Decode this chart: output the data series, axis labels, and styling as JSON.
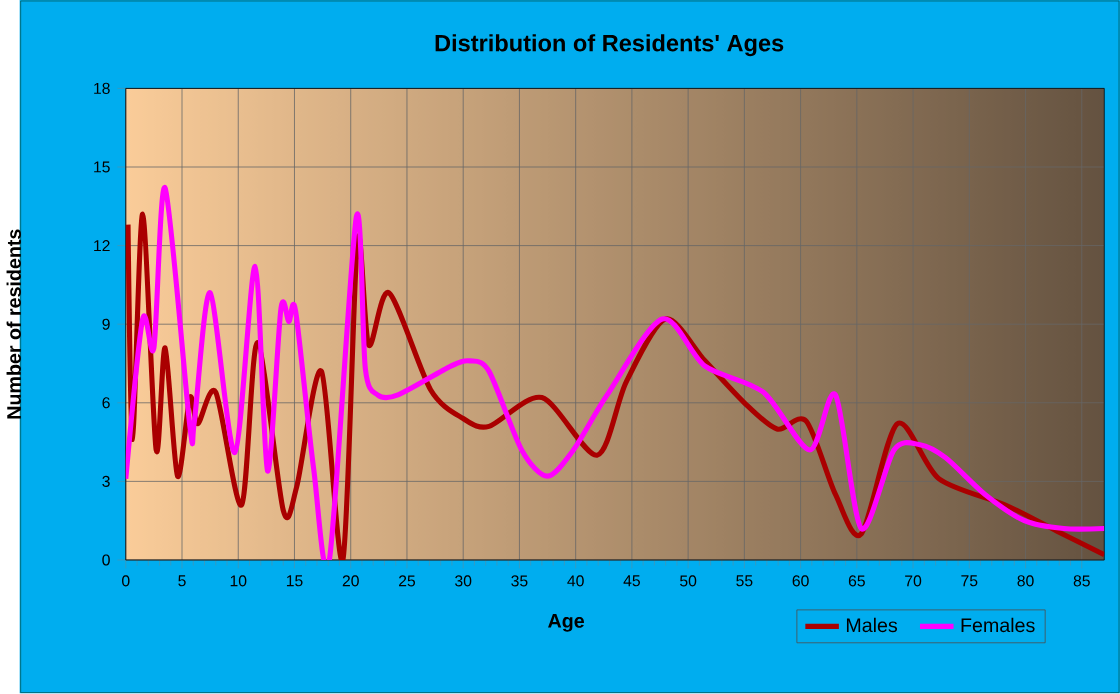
{
  "chart_data": {
    "type": "line",
    "title": "Distribution of Residents' Ages",
    "xlabel": "Age",
    "ylabel": "Number of residents",
    "series": [
      {
        "name": "Males",
        "color": "#aa0000",
        "x": [
          0.2,
          0.6,
          1.5,
          2.7,
          3.5,
          4.6,
          5.7,
          6.4,
          8.0,
          10.3,
          11.7,
          14.0,
          15.2,
          17.4,
          19.3,
          20.6,
          21.6,
          23.4,
          27.1,
          30,
          32.3,
          37.0,
          41.9,
          44.5,
          48.0,
          51.5,
          55.0,
          57.9,
          60.5,
          63.1,
          65.4,
          68.6,
          72.3,
          78.2,
          82.8,
          87
        ],
        "values": [
          12.8,
          4.6,
          13.2,
          4.2,
          8.1,
          3.2,
          6.2,
          5.2,
          6.4,
          2.1,
          8.3,
          1.9,
          2.8,
          7.2,
          0,
          12.2,
          8.2,
          10.2,
          6.5,
          5.4,
          5.1,
          6.2,
          4.0,
          6.8,
          9.2,
          7.6,
          6.0,
          5.0,
          5.3,
          2.5,
          1.0,
          5.2,
          3.1,
          2.1,
          1.1,
          0.2
        ]
      },
      {
        "name": "Females",
        "color": "#ff00ff",
        "x": [
          0,
          1.5,
          2.5,
          3.5,
          5.7,
          6.1,
          7.5,
          9.7,
          11.5,
          12.6,
          13.8,
          14.5,
          15.1,
          16.7,
          18.1,
          20.5,
          21.3,
          22.4,
          24.2,
          28.9,
          30.6,
          32.3,
          35.2,
          37.5,
          39.8,
          42.8,
          47.7,
          51.5,
          56.7,
          60.8,
          63.1,
          65.4,
          68.3,
          70.6,
          72.9,
          76.4,
          79.9,
          83.4,
          87
        ],
        "values": [
          3.1,
          9.2,
          8.1,
          14.2,
          5.1,
          5.3,
          10.2,
          4.1,
          11.2,
          3.4,
          9.6,
          9.1,
          9.5,
          3.5,
          0,
          13.1,
          7.3,
          6.3,
          6.3,
          7.4,
          7.6,
          7.2,
          4.2,
          3.2,
          4.2,
          6.3,
          9.2,
          7.4,
          6.4,
          4.2,
          6.3,
          1.2,
          4.2,
          4.4,
          3.9,
          2.5,
          1.5,
          1.2,
          1.2
        ]
      }
    ],
    "xlim": [
      0,
      87
    ],
    "xticks": [
      0,
      5,
      10,
      15,
      20,
      25,
      30,
      35,
      40,
      45,
      50,
      55,
      60,
      65,
      70,
      75,
      80,
      85
    ],
    "ylim": [
      0,
      18
    ],
    "yticks": [
      0,
      3,
      6,
      9,
      12,
      15,
      18
    ],
    "grid": true,
    "legend": "bottom right",
    "marker": "none",
    "line_style": "solid"
  }
}
